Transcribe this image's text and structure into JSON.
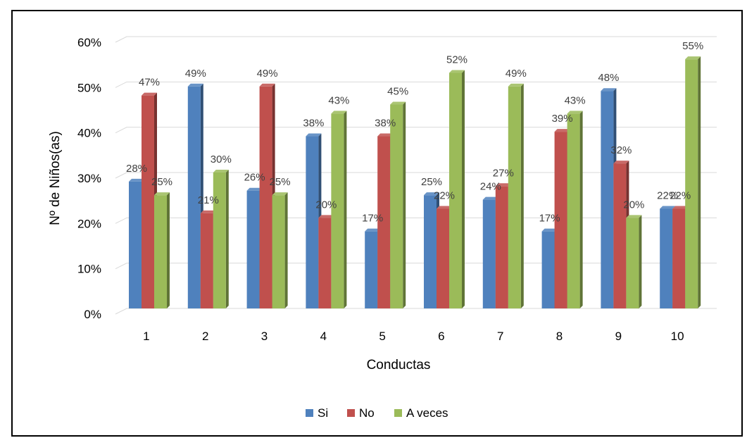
{
  "chart_data": {
    "type": "bar",
    "style": "3d-clustered-column",
    "categories": [
      "1",
      "2",
      "3",
      "4",
      "5",
      "6",
      "7",
      "8",
      "9",
      "10"
    ],
    "series": [
      {
        "name": "Si",
        "color": "#4F81BD",
        "values": [
          28,
          49,
          26,
          38,
          17,
          25,
          24,
          17,
          48,
          22
        ]
      },
      {
        "name": "No",
        "color": "#C0504D",
        "values": [
          47,
          21,
          49,
          20,
          38,
          22,
          27,
          39,
          32,
          22
        ]
      },
      {
        "name": "A veces",
        "color": "#9BBB59",
        "values": [
          25,
          30,
          25,
          43,
          45,
          52,
          49,
          43,
          20,
          55
        ]
      }
    ],
    "data_labels": {
      "Si": [
        "28%",
        "49%",
        "26%",
        "38%",
        "17%",
        "25%",
        "24%",
        "17%",
        "48%",
        "22%"
      ],
      "No": [
        "47%",
        "21%",
        "49%",
        "20%",
        "38%",
        "22%",
        "27%",
        "39%",
        "32%",
        "22%"
      ],
      "A veces": [
        "25%",
        "30%",
        "25%",
        "43%",
        "45%",
        "52%",
        "49%",
        "43%",
        "20%",
        "55%"
      ]
    },
    "xlabel": "Conductas",
    "ylabel": "Nº de Niños(as)",
    "ylim": [
      0,
      60
    ],
    "yticks": [
      "0%",
      "10%",
      "20%",
      "30%",
      "40%",
      "50%",
      "60%"
    ],
    "grid": true,
    "legend_position": "bottom"
  }
}
